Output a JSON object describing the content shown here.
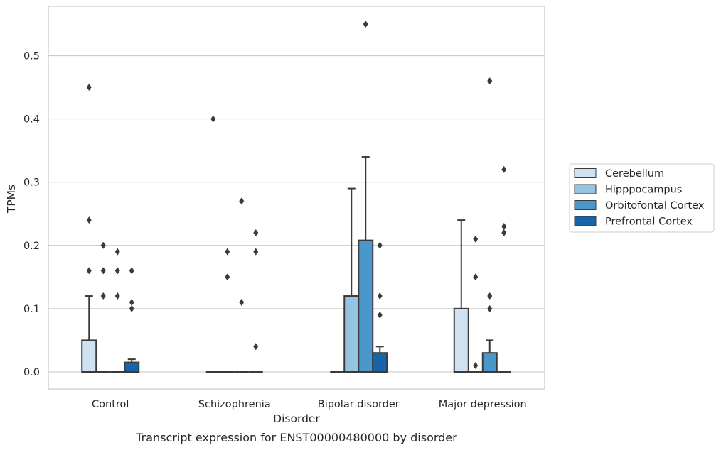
{
  "chart_data": {
    "type": "box",
    "title": "",
    "caption": "Transcript expression for ENST00000480000 by disorder",
    "xlabel": "Disorder",
    "ylabel": "TPMs",
    "ylim": [
      -0.027,
      0.578
    ],
    "yticks": [
      "0.0",
      "0.1",
      "0.2",
      "0.3",
      "0.4",
      "0.5"
    ],
    "categories": [
      "Control",
      "Schizophrenia",
      "Bipolar disorder",
      "Major depression"
    ],
    "grid": true,
    "legend_position": "right",
    "series": [
      {
        "name": "Cerebellum",
        "color": "#d0e1f2",
        "boxes": [
          {
            "q1": 0,
            "median": 0,
            "q3": 0.05,
            "whisker_low": 0,
            "whisker_high": 0.12,
            "outliers": [
              0.45,
              0.24,
              0.16
            ]
          },
          {
            "q1": 0,
            "median": 0,
            "q3": 0,
            "whisker_low": 0,
            "whisker_high": 0,
            "outliers": [
              0.4
            ]
          },
          {
            "q1": 0,
            "median": 0,
            "q3": 0,
            "whisker_low": 0,
            "whisker_high": 0,
            "outliers": []
          },
          {
            "q1": 0,
            "median": 0,
            "q3": 0.1,
            "whisker_low": 0,
            "whisker_high": 0.24,
            "outliers": []
          }
        ]
      },
      {
        "name": "Hipppocampus",
        "color": "#94c4df",
        "boxes": [
          {
            "q1": 0,
            "median": 0,
            "q3": 0,
            "whisker_low": 0,
            "whisker_high": 0,
            "outliers": [
              0.2,
              0.16,
              0.12
            ]
          },
          {
            "q1": 0,
            "median": 0,
            "q3": 0,
            "whisker_low": 0,
            "whisker_high": 0,
            "outliers": [
              0.19,
              0.15
            ]
          },
          {
            "q1": 0,
            "median": 0,
            "q3": 0.12,
            "whisker_low": 0,
            "whisker_high": 0.29,
            "outliers": []
          },
          {
            "q1": 0,
            "median": 0,
            "q3": 0,
            "whisker_low": 0,
            "whisker_high": 0,
            "outliers": [
              0.21,
              0.15,
              0.01
            ]
          }
        ]
      },
      {
        "name": "Orbitofontal Cortex",
        "color": "#4a98c9",
        "boxes": [
          {
            "q1": 0,
            "median": 0,
            "q3": 0,
            "whisker_low": 0,
            "whisker_high": 0,
            "outliers": [
              0.19,
              0.16,
              0.12
            ]
          },
          {
            "q1": 0,
            "median": 0,
            "q3": 0,
            "whisker_low": 0,
            "whisker_high": 0,
            "outliers": [
              0.27,
              0.11
            ]
          },
          {
            "q1": 0,
            "median": 0,
            "q3": 0.208,
            "whisker_low": 0,
            "whisker_high": 0.34,
            "outliers": [
              0.55
            ]
          },
          {
            "q1": 0,
            "median": 0,
            "q3": 0.03,
            "whisker_low": 0,
            "whisker_high": 0.05,
            "outliers": [
              0.46,
              0.12,
              0.1
            ]
          }
        ]
      },
      {
        "name": "Prefrontal Cortex",
        "color": "#1764ab",
        "boxes": [
          {
            "q1": 0,
            "median": 0,
            "q3": 0.015,
            "whisker_low": 0,
            "whisker_high": 0.02,
            "outliers": [
              0.16,
              0.11,
              0.1
            ]
          },
          {
            "q1": 0,
            "median": 0,
            "q3": 0,
            "whisker_low": 0,
            "whisker_high": 0,
            "outliers": [
              0.22,
              0.19,
              0.04
            ]
          },
          {
            "q1": 0,
            "median": 0,
            "q3": 0.03,
            "whisker_low": 0,
            "whisker_high": 0.04,
            "outliers": [
              0.2,
              0.12,
              0.09
            ]
          },
          {
            "q1": 0,
            "median": 0,
            "q3": 0,
            "whisker_low": 0,
            "whisker_high": 0,
            "outliers": [
              0.32,
              0.23,
              0.22
            ]
          }
        ]
      }
    ]
  }
}
